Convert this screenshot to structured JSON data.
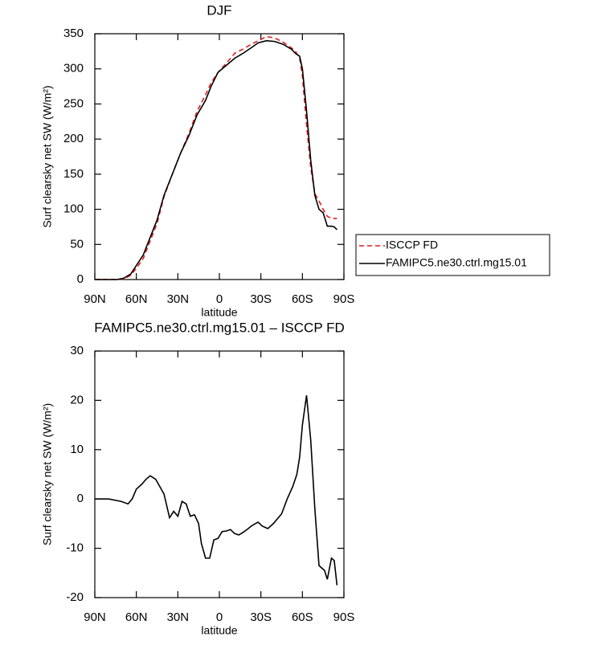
{
  "chart_data": [
    {
      "type": "line",
      "title": "DJF",
      "xlabel": "latitude",
      "ylabel": "Surf clearsky net SW (W/m²)",
      "xlim": [
        90,
        -90
      ],
      "xticks": [
        {
          "value": 90,
          "label": "90N"
        },
        {
          "value": 60,
          "label": "60N"
        },
        {
          "value": 30,
          "label": "30N"
        },
        0,
        {
          "value": -30,
          "label": "30S"
        },
        {
          "value": -60,
          "label": "60S"
        },
        {
          "value": -90,
          "label": "90S"
        }
      ],
      "ylim": [
        0,
        350
      ],
      "yticks": [
        0,
        50,
        100,
        150,
        200,
        250,
        300,
        350
      ],
      "legend": "right",
      "series": [
        {
          "name": "ISCCP FD",
          "color": "#e41a1c",
          "linestyle": "dashed",
          "x": [
            90,
            74,
            69,
            64,
            60,
            55,
            51,
            45,
            40,
            34,
            28,
            22,
            16,
            10,
            6,
            1,
            -5,
            -11,
            -17,
            -23,
            -28,
            -34,
            -40,
            -46,
            -52,
            -55,
            -58,
            -60,
            -63,
            -66,
            -69,
            -72,
            -75,
            -78,
            -81,
            -83,
            -85
          ],
          "values": [
            0,
            0,
            1,
            6,
            16,
            30,
            50,
            80,
            118,
            150,
            180,
            208,
            240,
            263,
            280,
            295,
            308,
            322,
            328,
            335,
            340,
            346,
            344,
            338,
            330,
            325,
            315,
            290,
            220,
            160,
            122,
            112,
            100,
            90,
            87,
            87,
            87
          ]
        },
        {
          "name": "FAMIPC5.ne30.ctrl.mg15.01",
          "color": "#000000",
          "linestyle": "solid",
          "x": [
            90,
            74,
            69,
            64,
            60,
            55,
            51,
            45,
            40,
            34,
            28,
            22,
            16,
            10,
            6,
            1,
            -5,
            -11,
            -17,
            -23,
            -28,
            -34,
            -40,
            -46,
            -52,
            -55,
            -58,
            -60,
            -63,
            -66,
            -69,
            -72,
            -75,
            -78,
            -81,
            -83,
            -85
          ],
          "values": [
            0,
            0,
            2,
            8,
            20,
            35,
            55,
            85,
            120,
            150,
            180,
            205,
            235,
            255,
            275,
            295,
            305,
            315,
            322,
            330,
            337,
            340,
            339,
            335,
            328,
            322,
            318,
            300,
            240,
            170,
            120,
            100,
            95,
            76,
            76,
            75,
            71
          ]
        }
      ]
    },
    {
      "type": "line",
      "title": "FAMIPC5.ne30.ctrl.mg15.01 – ISCCP FD",
      "xlabel": "latitude",
      "ylabel": "Surf clearsky net SW (W/m²)",
      "xlim": [
        90,
        -90
      ],
      "xticks": [
        {
          "value": 90,
          "label": "90N"
        },
        {
          "value": 60,
          "label": "60N"
        },
        {
          "value": 30,
          "label": "30N"
        },
        0,
        {
          "value": -30,
          "label": "30S"
        },
        {
          "value": -60,
          "label": "60S"
        },
        {
          "value": -90,
          "label": "90S"
        }
      ],
      "ylim": [
        -20,
        30
      ],
      "yticks": [
        -20,
        -10,
        0,
        10,
        20,
        30
      ],
      "series": [
        {
          "color": "#000000",
          "linestyle": "solid",
          "x": [
            90,
            80,
            71,
            66,
            63,
            60,
            56,
            53,
            50,
            46,
            43,
            40,
            36,
            33,
            30,
            27,
            24,
            21,
            18,
            15,
            13,
            10,
            7,
            4,
            1,
            -2,
            -5,
            -8,
            -11,
            -14,
            -17,
            -20,
            -23,
            -26,
            -28,
            -31,
            -35,
            -39,
            -45,
            -49,
            -53,
            -56,
            -58,
            -60,
            -63,
            -66,
            -69,
            -72,
            -76,
            -78,
            -81,
            -83,
            -85
          ],
          "values": [
            0,
            0,
            -0.5,
            -1,
            0,
            2,
            3,
            4,
            4.7,
            4,
            2.5,
            1,
            -3.8,
            -2.5,
            -3.5,
            -0.5,
            -1,
            -3.5,
            -3.2,
            -5,
            -9,
            -12,
            -12,
            -8.3,
            -8,
            -6.6,
            -6.5,
            -6.2,
            -7,
            -7.3,
            -6.8,
            -6.2,
            -5.5,
            -5,
            -4.7,
            -5.5,
            -6,
            -5,
            -3,
            0,
            2.5,
            5,
            8.5,
            15,
            21,
            12,
            -2,
            -13.5,
            -14.5,
            -16.3,
            -12,
            -12.5,
            -17.5
          ]
        }
      ]
    }
  ]
}
